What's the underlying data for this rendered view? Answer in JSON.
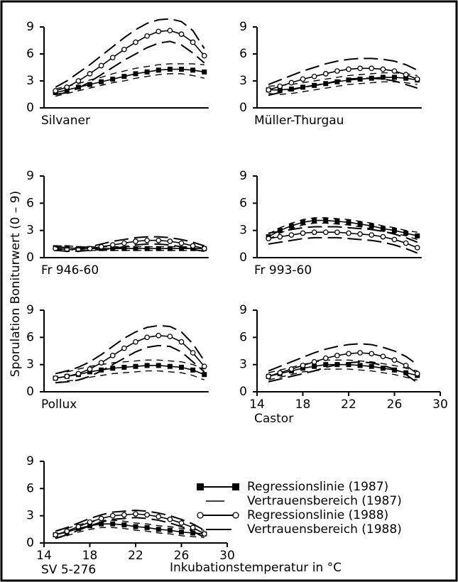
{
  "ylabel": "Sporulation Boniturwert (0 – 9)",
  "xlabel": "Inkubationstemperatur in °C",
  "chart_data": [
    {
      "type": "line",
      "title": "Silvaner",
      "x": [
        15,
        16,
        17,
        18,
        19,
        20,
        21,
        22,
        23,
        24,
        25,
        26,
        27,
        28
      ],
      "xlim": [
        14,
        30
      ],
      "ylim": [
        0,
        9
      ],
      "yticks": [
        0,
        3,
        6,
        9
      ],
      "series": [
        {
          "color": "#000",
          "marker": "square",
          "values": [
            1.7,
            2.0,
            2.3,
            2.6,
            2.9,
            3.2,
            3.5,
            3.8,
            4.0,
            4.2,
            4.3,
            4.3,
            4.2,
            4.0
          ]
        },
        {
          "color": "#000",
          "upper": [
            2.1,
            2.4,
            2.7,
            3.1,
            3.4,
            3.8,
            4.1,
            4.4,
            4.6,
            4.8,
            4.9,
            4.9,
            4.9,
            4.8
          ],
          "lower": [
            1.3,
            1.6,
            1.9,
            2.2,
            2.5,
            2.8,
            3.0,
            3.3,
            3.5,
            3.7,
            3.8,
            3.8,
            3.6,
            3.3
          ]
        },
        {
          "color": "#000",
          "marker": "circle",
          "values": [
            1.9,
            2.3,
            3.0,
            3.8,
            4.7,
            5.6,
            6.5,
            7.3,
            8.0,
            8.5,
            8.6,
            8.2,
            7.3,
            5.8
          ]
        },
        {
          "color": "#000",
          "upper": [
            2.3,
            3.0,
            3.9,
            4.8,
            5.8,
            6.8,
            7.8,
            8.7,
            9.4,
            9.8,
            9.9,
            9.6,
            8.6,
            6.6
          ],
          "lower": [
            1.5,
            1.7,
            2.2,
            2.9,
            3.7,
            4.5,
            5.3,
            6.0,
            6.7,
            7.2,
            7.4,
            7.0,
            6.1,
            5.0
          ]
        }
      ]
    },
    {
      "type": "line",
      "title": "Müller-Thurgau",
      "x": [
        15,
        16,
        17,
        18,
        19,
        20,
        21,
        22,
        23,
        24,
        25,
        26,
        27,
        28
      ],
      "xlim": [
        14,
        30
      ],
      "ylim": [
        0,
        9
      ],
      "yticks": [
        0,
        3,
        6,
        9
      ],
      "series": [
        {
          "color": "#000",
          "marker": "square",
          "values": [
            2.0,
            2.0,
            2.1,
            2.3,
            2.5,
            2.7,
            2.9,
            3.1,
            3.2,
            3.3,
            3.4,
            3.4,
            3.3,
            3.1
          ]
        },
        {
          "color": "#000",
          "upper": [
            2.4,
            2.5,
            2.6,
            2.8,
            3.0,
            3.2,
            3.4,
            3.6,
            3.7,
            3.8,
            3.9,
            3.9,
            3.8,
            3.6
          ],
          "lower": [
            1.6,
            1.5,
            1.6,
            1.8,
            2.0,
            2.2,
            2.4,
            2.6,
            2.7,
            2.8,
            2.9,
            2.9,
            2.8,
            2.6
          ]
        },
        {
          "color": "#000",
          "marker": "circle",
          "values": [
            2.0,
            2.4,
            2.8,
            3.2,
            3.5,
            3.8,
            4.1,
            4.3,
            4.4,
            4.4,
            4.3,
            4.1,
            3.7,
            3.2
          ]
        },
        {
          "color": "#000",
          "upper": [
            2.6,
            3.1,
            3.6,
            4.1,
            4.5,
            4.9,
            5.2,
            5.4,
            5.5,
            5.5,
            5.4,
            5.2,
            4.8,
            4.2
          ],
          "lower": [
            1.4,
            1.7,
            2.0,
            2.3,
            2.5,
            2.7,
            3.0,
            3.2,
            3.3,
            3.3,
            3.2,
            3.0,
            2.6,
            2.2
          ]
        }
      ]
    },
    {
      "type": "line",
      "title": "Fr 946-60",
      "x": [
        15,
        16,
        17,
        18,
        19,
        20,
        21,
        22,
        23,
        24,
        25,
        26,
        27,
        28
      ],
      "xlim": [
        14,
        30
      ],
      "ylim": [
        0,
        9
      ],
      "yticks": [
        0,
        3,
        6,
        9
      ],
      "series": [
        {
          "color": "#000",
          "marker": "square",
          "values": [
            1.1,
            1.1,
            1.0,
            1.0,
            1.0,
            1.0,
            1.0,
            1.0,
            1.0,
            1.0,
            1.0,
            1.0,
            1.0,
            1.0
          ]
        },
        {
          "color": "#000",
          "upper": [
            1.3,
            1.3,
            1.2,
            1.2,
            1.2,
            1.2,
            1.2,
            1.2,
            1.2,
            1.2,
            1.2,
            1.2,
            1.2,
            1.2
          ],
          "lower": [
            0.9,
            0.9,
            0.8,
            0.8,
            0.8,
            0.8,
            0.8,
            0.8,
            0.8,
            0.8,
            0.8,
            0.8,
            0.8,
            0.8
          ]
        },
        {
          "color": "#000",
          "marker": "circle",
          "values": [
            1.0,
            0.9,
            0.9,
            1.0,
            1.2,
            1.4,
            1.6,
            1.8,
            1.9,
            1.9,
            1.8,
            1.6,
            1.3,
            1.0
          ]
        },
        {
          "color": "#000",
          "upper": [
            1.2,
            1.1,
            1.1,
            1.2,
            1.5,
            1.8,
            2.0,
            2.2,
            2.3,
            2.3,
            2.2,
            2.0,
            1.7,
            1.3
          ],
          "lower": [
            0.8,
            0.7,
            0.7,
            0.8,
            0.9,
            1.0,
            1.2,
            1.4,
            1.5,
            1.5,
            1.4,
            1.2,
            0.9,
            0.7
          ]
        }
      ]
    },
    {
      "type": "line",
      "title": "Fr 993-60",
      "x": [
        15,
        16,
        17,
        18,
        19,
        20,
        21,
        22,
        23,
        24,
        25,
        26,
        27,
        28
      ],
      "xlim": [
        14,
        30
      ],
      "ylim": [
        0,
        9
      ],
      "yticks": [
        0,
        3,
        6,
        9
      ],
      "series": [
        {
          "color": "#000",
          "marker": "square",
          "values": [
            2.3,
            3.0,
            3.5,
            3.9,
            4.1,
            4.1,
            4.0,
            3.9,
            3.7,
            3.5,
            3.2,
            3.0,
            2.7,
            2.4
          ]
        },
        {
          "color": "#000",
          "upper": [
            2.6,
            3.3,
            3.8,
            4.2,
            4.4,
            4.4,
            4.3,
            4.2,
            4.0,
            3.8,
            3.5,
            3.3,
            3.0,
            2.8
          ],
          "lower": [
            2.0,
            2.7,
            3.2,
            3.6,
            3.8,
            3.8,
            3.7,
            3.6,
            3.4,
            3.2,
            2.9,
            2.7,
            2.4,
            2.0
          ]
        },
        {
          "color": "#000",
          "marker": "circle",
          "values": [
            2.1,
            2.3,
            2.5,
            2.7,
            2.8,
            2.8,
            2.8,
            2.7,
            2.6,
            2.5,
            2.3,
            2.0,
            1.6,
            1.1
          ]
        },
        {
          "color": "#000",
          "upper": [
            2.7,
            2.9,
            3.1,
            3.3,
            3.4,
            3.4,
            3.4,
            3.3,
            3.2,
            3.1,
            2.9,
            2.6,
            2.2,
            1.7
          ],
          "lower": [
            1.5,
            1.7,
            1.9,
            2.1,
            2.2,
            2.2,
            2.2,
            2.1,
            2.0,
            1.9,
            1.7,
            1.4,
            1.0,
            0.5
          ]
        }
      ]
    },
    {
      "type": "line",
      "title": "Pollux",
      "x": [
        15,
        16,
        17,
        18,
        19,
        20,
        21,
        22,
        23,
        24,
        25,
        26,
        27,
        28
      ],
      "xlim": [
        14,
        30
      ],
      "ylim": [
        0,
        9
      ],
      "yticks": [
        0,
        3,
        6,
        9
      ],
      "series": [
        {
          "color": "#000",
          "marker": "square",
          "values": [
            1.5,
            1.7,
            1.9,
            2.2,
            2.4,
            2.6,
            2.7,
            2.8,
            2.9,
            2.9,
            2.8,
            2.7,
            2.4,
            1.9
          ]
        },
        {
          "color": "#000",
          "upper": [
            2.0,
            2.2,
            2.5,
            2.8,
            3.0,
            3.2,
            3.3,
            3.4,
            3.5,
            3.5,
            3.4,
            3.3,
            3.0,
            2.5
          ],
          "lower": [
            1.0,
            1.2,
            1.3,
            1.6,
            1.8,
            2.0,
            2.1,
            2.2,
            2.3,
            2.3,
            2.2,
            2.1,
            1.8,
            1.3
          ]
        },
        {
          "color": "#000",
          "marker": "circle",
          "values": [
            1.5,
            1.7,
            2.0,
            2.5,
            3.2,
            4.0,
            4.8,
            5.5,
            6.0,
            6.2,
            6.1,
            5.5,
            4.3,
            2.8
          ]
        },
        {
          "color": "#000",
          "upper": [
            2.0,
            2.3,
            2.7,
            3.3,
            4.1,
            5.0,
            5.9,
            6.6,
            7.1,
            7.3,
            7.2,
            6.6,
            5.3,
            3.4
          ],
          "lower": [
            1.0,
            1.1,
            1.3,
            1.7,
            2.3,
            3.0,
            3.7,
            4.4,
            4.9,
            5.1,
            5.0,
            4.4,
            3.3,
            2.2
          ]
        }
      ]
    },
    {
      "type": "line",
      "title": "Castor",
      "x": [
        15,
        16,
        17,
        18,
        19,
        20,
        21,
        22,
        23,
        24,
        25,
        26,
        27,
        28
      ],
      "xlim": [
        14,
        30
      ],
      "xticks": [
        14,
        18,
        22,
        26,
        30
      ],
      "ylim": [
        0,
        9
      ],
      "yticks": [
        0,
        3,
        6,
        9
      ],
      "series": [
        {
          "color": "#000",
          "marker": "square",
          "values": [
            1.7,
            2.0,
            2.3,
            2.6,
            2.8,
            3.0,
            3.0,
            3.0,
            2.9,
            2.8,
            2.6,
            2.4,
            2.1,
            1.8
          ]
        },
        {
          "color": "#000",
          "upper": [
            2.1,
            2.4,
            2.7,
            3.0,
            3.3,
            3.5,
            3.5,
            3.5,
            3.4,
            3.3,
            3.1,
            2.9,
            2.6,
            2.3
          ],
          "lower": [
            1.3,
            1.6,
            1.9,
            2.2,
            2.3,
            2.5,
            2.5,
            2.5,
            2.4,
            2.3,
            2.1,
            1.9,
            1.6,
            1.3
          ]
        },
        {
          "color": "#000",
          "marker": "circle",
          "values": [
            1.7,
            2.1,
            2.5,
            2.9,
            3.3,
            3.7,
            4.0,
            4.2,
            4.3,
            4.2,
            3.9,
            3.5,
            2.9,
            2.0
          ]
        },
        {
          "color": "#000",
          "upper": [
            2.3,
            2.8,
            3.3,
            3.8,
            4.3,
            4.7,
            5.0,
            5.2,
            5.3,
            5.2,
            4.9,
            4.5,
            3.9,
            3.0
          ],
          "lower": [
            1.1,
            1.4,
            1.7,
            2.0,
            2.3,
            2.7,
            3.0,
            3.2,
            3.3,
            3.2,
            2.9,
            2.5,
            1.9,
            1.0
          ]
        }
      ]
    },
    {
      "type": "line",
      "title": "SV 5-276",
      "x": [
        15,
        16,
        17,
        18,
        19,
        20,
        21,
        22,
        23,
        24,
        25,
        26,
        27,
        28
      ],
      "xlim": [
        14,
        30
      ],
      "xticks": [
        14,
        18,
        22,
        26,
        30
      ],
      "ylim": [
        0,
        9
      ],
      "yticks": [
        0,
        3,
        6,
        9
      ],
      "series": [
        {
          "name": "Regressionslinie (1987)",
          "color": "#000",
          "marker": "square",
          "values": [
            0.9,
            1.2,
            1.6,
            1.9,
            2.1,
            2.1,
            2.0,
            1.8,
            1.7,
            1.5,
            1.4,
            1.2,
            1.1,
            1.0
          ]
        },
        {
          "name": "Vertrauensbereich (1987)",
          "color": "#000",
          "upper": [
            1.3,
            1.6,
            2.0,
            2.3,
            2.5,
            2.5,
            2.4,
            2.2,
            2.1,
            1.9,
            1.8,
            1.6,
            1.5,
            1.4
          ],
          "lower": [
            0.5,
            0.8,
            1.2,
            1.5,
            1.7,
            1.7,
            1.6,
            1.4,
            1.3,
            1.1,
            1.0,
            0.8,
            0.7,
            0.6
          ]
        },
        {
          "name": "Regressionslinie (1988)",
          "color": "#000",
          "marker": "circle",
          "values": [
            0.9,
            1.3,
            1.8,
            2.3,
            2.7,
            3.0,
            3.1,
            3.2,
            3.1,
            2.9,
            2.6,
            2.2,
            1.7,
            1.0
          ]
        },
        {
          "name": "Vertrauensbereich (1988)",
          "color": "#000",
          "upper": [
            1.3,
            1.7,
            2.2,
            2.7,
            3.1,
            3.4,
            3.5,
            3.6,
            3.5,
            3.3,
            3.0,
            2.6,
            2.1,
            1.4
          ],
          "lower": [
            0.5,
            0.9,
            1.4,
            1.9,
            2.3,
            2.6,
            2.7,
            2.8,
            2.7,
            2.5,
            2.2,
            1.8,
            1.3,
            0.6
          ]
        }
      ]
    }
  ]
}
